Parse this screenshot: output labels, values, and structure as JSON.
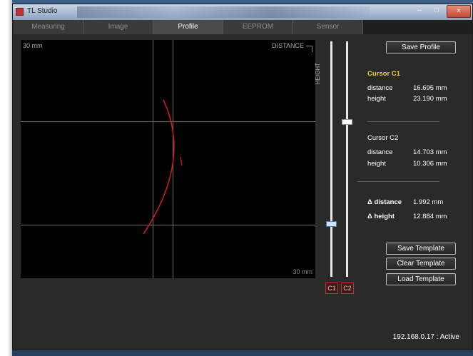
{
  "window": {
    "title": "TL Studio",
    "controls": {
      "minimize": "–",
      "maximize": "□",
      "close": "×"
    }
  },
  "tabs": [
    {
      "label": "Measuring",
      "active": false
    },
    {
      "label": "Image",
      "active": false
    },
    {
      "label": "Profile",
      "active": true
    },
    {
      "label": "EEPROM",
      "active": false
    },
    {
      "label": "Sensor",
      "active": false
    }
  ],
  "plot": {
    "top_left_label": "30 mm",
    "bottom_right_label": "30 mm",
    "x_axis_label": "DISTANCE",
    "y_axis_label": "HEIGHT",
    "curve_color": "#c81e1e",
    "gridline_color": "#6f6f4f"
  },
  "sliders": {
    "c1_label": "C1",
    "c2_label": "C2"
  },
  "panel": {
    "save_profile_label": "Save Profile",
    "cursor1": {
      "title": "Cursor C1",
      "distance_label": "distance",
      "distance_value": "16.695 mm",
      "height_label": "height",
      "height_value": "23.190 mm"
    },
    "cursor2": {
      "title": "Cursor C2",
      "distance_label": "distance",
      "distance_value": "14.703 mm",
      "height_label": "height",
      "height_value": "10.306 mm"
    },
    "delta": {
      "distance_label": "Δ distance",
      "distance_value": "1.992 mm",
      "height_label": "Δ height",
      "height_value": "12.884 mm"
    },
    "save_template_label": "Save Template",
    "clear_template_label": "Clear Template",
    "load_template_label": "Load Template"
  },
  "status": {
    "text": "192.168.0.17 : Active"
  },
  "colors": {
    "accent_yellow": "#e8d22a",
    "cursor_badge_border": "#c03030"
  }
}
